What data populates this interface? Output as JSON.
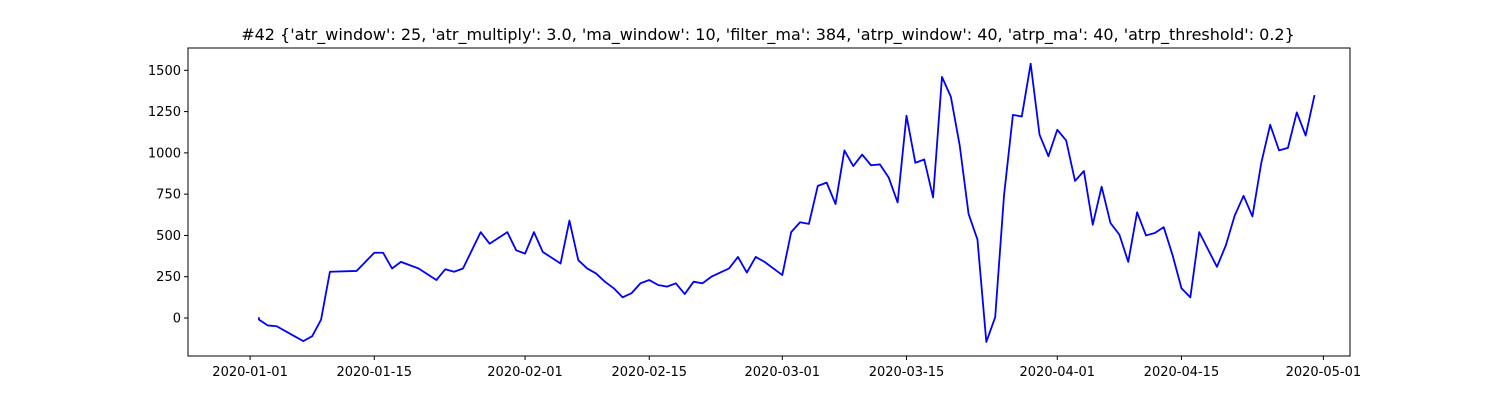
{
  "chart_data": {
    "type": "line",
    "title": "#42 {'atr_window': 25, 'atr_multiply': 3.0, 'ma_window': 10, 'filter_ma': 384, 'atrp_window': 40, 'atrp_ma': 40, 'atrp_threshold': 0.2}",
    "xlabel": "",
    "ylabel": "",
    "xlim": [
      "2019-12-25",
      "2020-05-04"
    ],
    "ylim": [
      -230,
      1635
    ],
    "grid": false,
    "line_color": "#0000ff",
    "x_ticks": [
      "2020-01-01",
      "2020-01-15",
      "2020-02-01",
      "2020-02-15",
      "2020-03-01",
      "2020-03-15",
      "2020-04-01",
      "2020-04-15",
      "2020-05-01"
    ],
    "y_ticks": [
      0,
      250,
      500,
      750,
      1000,
      1250,
      1500
    ],
    "series": [
      {
        "x": [
          "2020-01-02",
          "2020-01-02",
          "2020-01-03",
          "2020-01-04",
          "2020-01-06",
          "2020-01-07",
          "2020-01-08",
          "2020-01-09",
          "2020-01-10",
          "2020-01-13",
          "2020-01-14",
          "2020-01-15",
          "2020-01-16",
          "2020-01-17",
          "2020-01-18",
          "2020-01-20",
          "2020-01-22",
          "2020-01-23",
          "2020-01-24",
          "2020-01-25",
          "2020-01-27",
          "2020-01-28",
          "2020-01-30",
          "2020-01-31",
          "2020-02-01",
          "2020-02-02",
          "2020-02-03",
          "2020-02-05",
          "2020-02-06",
          "2020-02-07",
          "2020-02-08",
          "2020-02-09",
          "2020-02-10",
          "2020-02-11",
          "2020-02-12",
          "2020-02-13",
          "2020-02-14",
          "2020-02-15",
          "2020-02-16",
          "2020-02-17",
          "2020-02-18",
          "2020-02-19",
          "2020-02-20",
          "2020-02-21",
          "2020-02-22",
          "2020-02-24",
          "2020-02-25",
          "2020-02-26",
          "2020-02-27",
          "2020-02-28",
          "2020-03-01",
          "2020-03-02",
          "2020-03-03",
          "2020-03-04",
          "2020-03-05",
          "2020-03-06",
          "2020-03-07",
          "2020-03-08",
          "2020-03-09",
          "2020-03-10",
          "2020-03-11",
          "2020-03-12",
          "2020-03-13",
          "2020-03-14",
          "2020-03-15",
          "2020-03-16",
          "2020-03-17",
          "2020-03-18",
          "2020-03-19",
          "2020-03-20",
          "2020-03-21",
          "2020-03-22",
          "2020-03-23",
          "2020-03-24",
          "2020-03-25",
          "2020-03-26",
          "2020-03-27",
          "2020-03-28",
          "2020-03-29",
          "2020-03-30",
          "2020-03-31",
          "2020-04-01",
          "2020-04-02",
          "2020-04-03",
          "2020-04-04",
          "2020-04-05",
          "2020-04-06",
          "2020-04-07",
          "2020-04-08",
          "2020-04-09",
          "2020-04-10",
          "2020-04-11",
          "2020-04-12",
          "2020-04-13",
          "2020-04-14",
          "2020-04-15",
          "2020-04-16",
          "2020-04-17",
          "2020-04-18",
          "2020-04-19",
          "2020-04-20",
          "2020-04-21",
          "2020-04-22",
          "2020-04-23",
          "2020-04-24",
          "2020-04-25",
          "2020-04-26",
          "2020-04-27",
          "2020-04-28",
          "2020-04-29",
          "2020-04-30"
        ],
        "values": [
          5,
          -10,
          -45,
          -50,
          -110,
          -140,
          -110,
          -10,
          280,
          285,
          340,
          395,
          395,
          300,
          340,
          300,
          230,
          295,
          280,
          300,
          520,
          450,
          520,
          410,
          390,
          520,
          400,
          330,
          590,
          350,
          300,
          270,
          220,
          180,
          125,
          150,
          210,
          230,
          200,
          190,
          210,
          145,
          220,
          210,
          250,
          300,
          370,
          275,
          370,
          340,
          260,
          520,
          580,
          570,
          800,
          820,
          690,
          1015,
          920,
          990,
          925,
          930,
          850,
          700,
          1225,
          940,
          960,
          730,
          1460,
          1340,
          1045,
          630,
          475,
          -145,
          5,
          745,
          1230,
          1220,
          1540,
          1110,
          980,
          1140,
          1075,
          830,
          890,
          565,
          795,
          575,
          505,
          340,
          640,
          500,
          515,
          550,
          380,
          180,
          125,
          520,
          415,
          310,
          440,
          620,
          740,
          615,
          940,
          1170,
          1015,
          1030,
          1245,
          1105,
          1350
        ],
        "display_values": [
          5,
          -10,
          -45,
          -50,
          -110,
          -140,
          -110,
          -10,
          280,
          285,
          340,
          395,
          395,
          300,
          340,
          300,
          230,
          295,
          280,
          300,
          520,
          450,
          520,
          410,
          390,
          520,
          400,
          330,
          590,
          350,
          300,
          270,
          220,
          180,
          125,
          150,
          210,
          230,
          200,
          190,
          210,
          145,
          220,
          210,
          250,
          300,
          370,
          275,
          370,
          340,
          260,
          520,
          580,
          570,
          800,
          820,
          690,
          1015,
          920,
          990,
          925,
          930,
          850,
          700,
          1225,
          940,
          960,
          730,
          1460,
          1340,
          1045,
          630,
          475,
          -145,
          5,
          745,
          1230,
          1220,
          1540,
          1110,
          980,
          1140,
          1075,
          830,
          890,
          565,
          795,
          575,
          505,
          340,
          640,
          500,
          515,
          550,
          380,
          180,
          125,
          520,
          415,
          310,
          440,
          620,
          740,
          615,
          940,
          1170,
          1015,
          1030,
          1245,
          1105,
          1350
        ]
      }
    ]
  }
}
